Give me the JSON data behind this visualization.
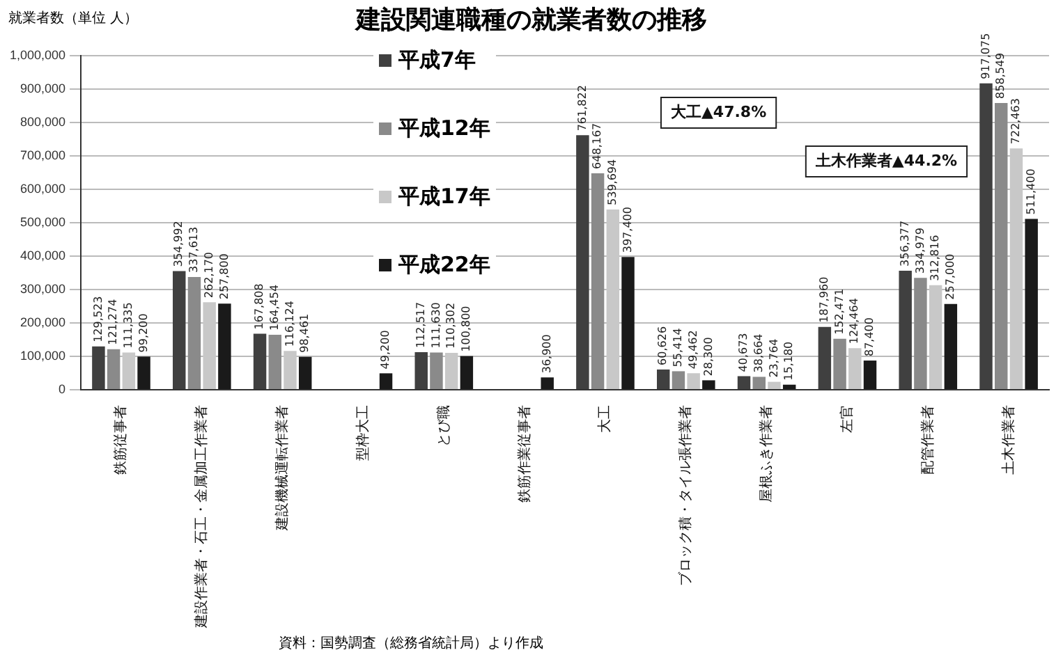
{
  "chart_data": {
    "type": "bar",
    "title": "建設関連職種の就業者数の推移",
    "ylabel": "就業者数（単位 人）",
    "categories": [
      "鉄筋従事者",
      "建設作業者・石工・金属加工作業者",
      "建設機械運転作業者",
      "型枠大工",
      "とび職",
      "鉄筋作業従事者",
      "大工",
      "ブロック積・タイル張作業者",
      "屋根ふき作業者",
      "左官",
      "配管作業者",
      "土木作業者"
    ],
    "series": [
      {
        "name": "平成7年",
        "color": "#404040",
        "values": [
          129523,
          354992,
          167808,
          null,
          112517,
          null,
          761822,
          60626,
          40673,
          187960,
          356377,
          917075
        ],
        "value_labels": [
          "129,523",
          "354,992",
          "167,808",
          null,
          "112,517",
          null,
          "761,822",
          "60,626",
          "40,673",
          "187,960",
          "356,377",
          "917,075"
        ]
      },
      {
        "name": "平成12年",
        "color": "#8a8a8a",
        "values": [
          121274,
          337613,
          164454,
          null,
          111630,
          null,
          648167,
          55414,
          38664,
          152471,
          334979,
          858549
        ],
        "value_labels": [
          "121,274",
          "337,613",
          "164,454",
          null,
          "111,630",
          null,
          "648,167",
          "55,414",
          "38,664",
          "152,471",
          "334,979",
          "858,549"
        ]
      },
      {
        "name": "平成17年",
        "color": "#c8c8c8",
        "values": [
          111335,
          262170,
          116124,
          null,
          110302,
          null,
          539694,
          49462,
          23764,
          124464,
          312816,
          722463
        ],
        "value_labels": [
          "111,335",
          "262,170",
          "116,124",
          null,
          "110,302",
          null,
          "539,694",
          "49,462",
          "23,764",
          "124,464",
          "312,816",
          "722,463"
        ]
      },
      {
        "name": "平成22年",
        "color": "#1a1a1a",
        "values": [
          99200,
          257800,
          98461,
          49200,
          100800,
          36900,
          397400,
          28300,
          15180,
          87400,
          257000,
          511400
        ],
        "value_labels": [
          "99,200",
          "257,800",
          "98,461",
          "49,200",
          "100,800",
          "36,900",
          "397,400",
          "28,300",
          "15,180",
          "87,400",
          "257,000",
          "511,400"
        ]
      }
    ],
    "ylim": [
      0,
      1000000
    ],
    "yticks": [
      0,
      {
        "value": 100000,
        "label": "100,000"
      },
      {
        "value": 200000,
        "label": "200,000"
      },
      {
        "value": 300000,
        "label": "300,000"
      },
      {
        "value": 400000,
        "label": "400,000"
      },
      {
        "value": 500000,
        "label": "500,000"
      },
      {
        "value": 600000,
        "label": "600,000"
      },
      {
        "value": 700000,
        "label": "700,000"
      },
      {
        "value": 800000,
        "label": "800,000"
      },
      {
        "value": 900000,
        "label": "900,000"
      },
      {
        "value": 1000000,
        "label": "1,000,000"
      }
    ],
    "grid": "y",
    "legend": "top left",
    "annotations": [
      "大工▲47.8%",
      "土木作業者▲44.2%",
      "資料：国勢調査（総務省統計局）より作成"
    ]
  }
}
